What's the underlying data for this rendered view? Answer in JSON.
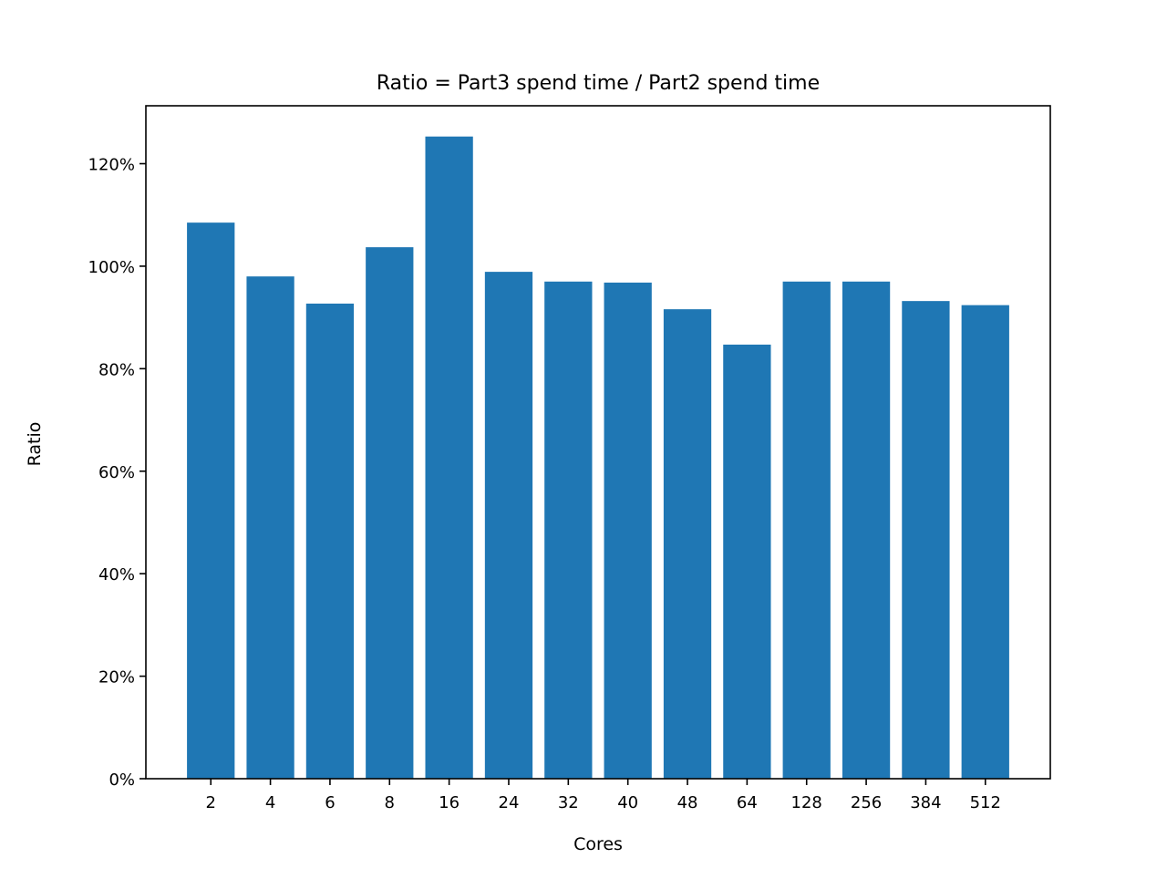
{
  "chart_data": {
    "type": "bar",
    "title": "Ratio = Part3 spend time / Part2 spend time",
    "xlabel": "Cores",
    "ylabel": "Ratio",
    "categories": [
      "2",
      "4",
      "6",
      "8",
      "16",
      "24",
      "32",
      "40",
      "48",
      "64",
      "128",
      "256",
      "384",
      "512"
    ],
    "values": [
      108.5,
      98.0,
      92.7,
      103.7,
      125.3,
      98.9,
      97.0,
      96.8,
      91.6,
      84.7,
      97.0,
      97.0,
      93.2,
      92.4
    ],
    "value_unit": "%",
    "ylim": [
      0,
      131.3
    ],
    "yticks": [
      0,
      20,
      40,
      60,
      80,
      100,
      120
    ],
    "ytick_labels": [
      "0%",
      "20%",
      "40%",
      "60%",
      "80%",
      "100%",
      "120%"
    ],
    "bar_color": "#1f77b4",
    "grid": false,
    "legend": "none"
  }
}
